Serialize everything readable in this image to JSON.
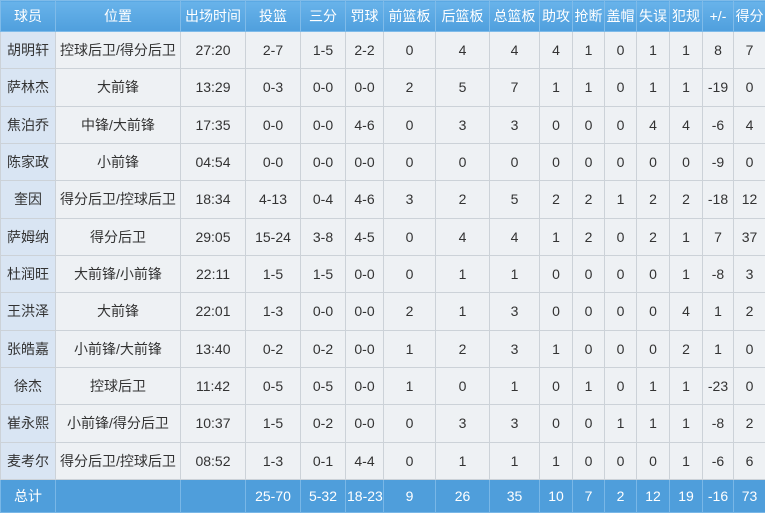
{
  "colors": {
    "header_bg_top": "#68b3ea",
    "header_bg_bottom": "#4f9fdd",
    "header_text": "#ffffff",
    "total_bg": "#4f9edb",
    "name_col_bg": "#d9e5f3",
    "cell_bg": "#eef1f4",
    "grid": "#ccd2d8",
    "cell_text": "#333333"
  },
  "table": {
    "columns": [
      "球员",
      "位置",
      "出场时间",
      "投篮",
      "三分",
      "罚球",
      "前篮板",
      "后篮板",
      "总篮板",
      "助攻",
      "抢断",
      "盖帽",
      "失误",
      "犯规",
      "+/-",
      "得分"
    ],
    "rows": [
      {
        "cells": [
          "胡明轩",
          "控球后卫/得分后卫",
          "27:20",
          "2-7",
          "1-5",
          "2-2",
          "0",
          "4",
          "4",
          "4",
          "1",
          "0",
          "1",
          "1",
          "8",
          "7"
        ]
      },
      {
        "cells": [
          "萨林杰",
          "大前锋",
          "13:29",
          "0-3",
          "0-0",
          "0-0",
          "2",
          "5",
          "7",
          "1",
          "1",
          "0",
          "1",
          "1",
          "-19",
          "0"
        ]
      },
      {
        "cells": [
          "焦泊乔",
          "中锋/大前锋",
          "17:35",
          "0-0",
          "0-0",
          "4-6",
          "0",
          "3",
          "3",
          "0",
          "0",
          "0",
          "4",
          "4",
          "-6",
          "4"
        ]
      },
      {
        "cells": [
          "陈家政",
          "小前锋",
          "04:54",
          "0-0",
          "0-0",
          "0-0",
          "0",
          "0",
          "0",
          "0",
          "0",
          "0",
          "0",
          "0",
          "-9",
          "0"
        ]
      },
      {
        "cells": [
          "奎因",
          "得分后卫/控球后卫",
          "18:34",
          "4-13",
          "0-4",
          "4-6",
          "3",
          "2",
          "5",
          "2",
          "2",
          "1",
          "2",
          "2",
          "-18",
          "12"
        ]
      },
      {
        "cells": [
          "萨姆纳",
          "得分后卫",
          "29:05",
          "15-24",
          "3-8",
          "4-5",
          "0",
          "4",
          "4",
          "1",
          "2",
          "0",
          "2",
          "1",
          "7",
          "37"
        ]
      },
      {
        "cells": [
          "杜润旺",
          "大前锋/小前锋",
          "22:11",
          "1-5",
          "1-5",
          "0-0",
          "0",
          "1",
          "1",
          "0",
          "0",
          "0",
          "0",
          "1",
          "-8",
          "3"
        ]
      },
      {
        "cells": [
          "王洪泽",
          "大前锋",
          "22:01",
          "1-3",
          "0-0",
          "0-0",
          "2",
          "1",
          "3",
          "0",
          "0",
          "0",
          "0",
          "4",
          "1",
          "2"
        ]
      },
      {
        "cells": [
          "张皓嘉",
          "小前锋/大前锋",
          "13:40",
          "0-2",
          "0-2",
          "0-0",
          "1",
          "2",
          "3",
          "1",
          "0",
          "0",
          "0",
          "2",
          "1",
          "0"
        ]
      },
      {
        "cells": [
          "徐杰",
          "控球后卫",
          "11:42",
          "0-5",
          "0-5",
          "0-0",
          "1",
          "0",
          "1",
          "0",
          "1",
          "0",
          "1",
          "1",
          "-23",
          "0"
        ]
      },
      {
        "cells": [
          "崔永熙",
          "小前锋/得分后卫",
          "10:37",
          "1-5",
          "0-2",
          "0-0",
          "0",
          "3",
          "3",
          "0",
          "0",
          "1",
          "1",
          "1",
          "-8",
          "2"
        ]
      },
      {
        "cells": [
          "麦考尔",
          "得分后卫/控球后卫",
          "08:52",
          "1-3",
          "0-1",
          "4-4",
          "0",
          "1",
          "1",
          "1",
          "0",
          "0",
          "0",
          "1",
          "-6",
          "6"
        ]
      }
    ],
    "total": {
      "cells": [
        "总计",
        "",
        "",
        "25-70",
        "5-32",
        "18-23",
        "9",
        "26",
        "35",
        "10",
        "7",
        "2",
        "12",
        "19",
        "-16",
        "73"
      ]
    }
  }
}
